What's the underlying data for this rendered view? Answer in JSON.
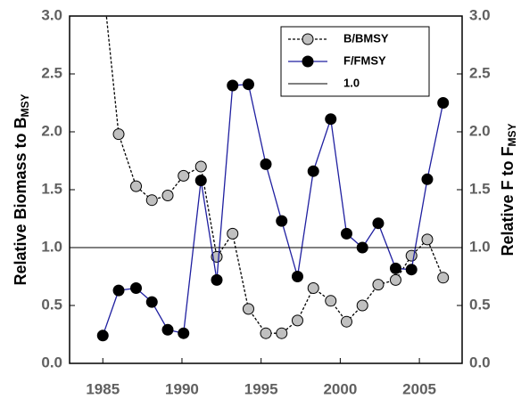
{
  "chart_data": {
    "type": "line",
    "y_label": "Relative Biomass to B",
    "y_label_sub": "MSY",
    "y2_label": "Relative F to F",
    "y2_label_sub": "MSY",
    "x": [
      1985.0,
      1986.0,
      1987.1,
      1988.1,
      1989.1,
      1990.1,
      1991.2,
      1992.2,
      1993.2,
      1994.2,
      1995.3,
      1996.3,
      1997.3,
      1998.3,
      1999.4,
      2000.4,
      2001.4,
      2002.4,
      2003.5,
      2004.5,
      2005.5,
      2006.5
    ],
    "series": [
      {
        "name": "B/BMSY",
        "color": "#c0c0c0",
        "line_color": "#000000",
        "dashed": true,
        "values": [
          3.3,
          1.98,
          1.53,
          1.41,
          1.45,
          1.62,
          1.7,
          0.92,
          1.12,
          0.47,
          0.26,
          0.26,
          0.37,
          0.65,
          0.54,
          0.36,
          0.5,
          0.68,
          0.72,
          0.93,
          1.07,
          0.74
        ]
      },
      {
        "name": "F/FMSY",
        "color": "#000000",
        "line_color": "#1f1fa0",
        "dashed": false,
        "axis": "y2",
        "values": [
          0.24,
          0.63,
          0.65,
          0.53,
          0.29,
          0.26,
          1.58,
          0.72,
          2.4,
          2.41,
          1.72,
          1.23,
          0.75,
          1.66,
          2.11,
          1.12,
          1.0,
          1.21,
          0.82,
          0.81,
          1.59,
          2.25
        ]
      }
    ],
    "reference_line": {
      "name": "1.0",
      "value": 1.0,
      "color": "#000000"
    },
    "xlim": [
      1982.9,
      2007.7
    ],
    "xticks": [
      1985,
      1990,
      1995,
      2000,
      2005
    ],
    "ylim": [
      0,
      3
    ],
    "yticks": [
      {
        "value": 0,
        "label": "0.0"
      },
      {
        "value": 0.5,
        "label": "0.5"
      },
      {
        "value": 1,
        "label": "1.0"
      },
      {
        "value": 1.5,
        "label": "1.5"
      },
      {
        "value": 2,
        "label": "2.0"
      },
      {
        "value": 2.5,
        "label": "2.5"
      },
      {
        "value": 3,
        "label": "3.0"
      }
    ],
    "y2lim": [
      0,
      3
    ],
    "y2ticks": [
      {
        "value": 0,
        "label": "0.0"
      },
      {
        "value": 0.5,
        "label": "0.5"
      },
      {
        "value": 1,
        "label": "1.0"
      },
      {
        "value": 1.5,
        "label": "1.5"
      },
      {
        "value": 2,
        "label": "2.0"
      },
      {
        "value": 2.5,
        "label": "2.5"
      },
      {
        "value": 3,
        "label": "3.0"
      }
    ],
    "legend": "upper-right"
  }
}
